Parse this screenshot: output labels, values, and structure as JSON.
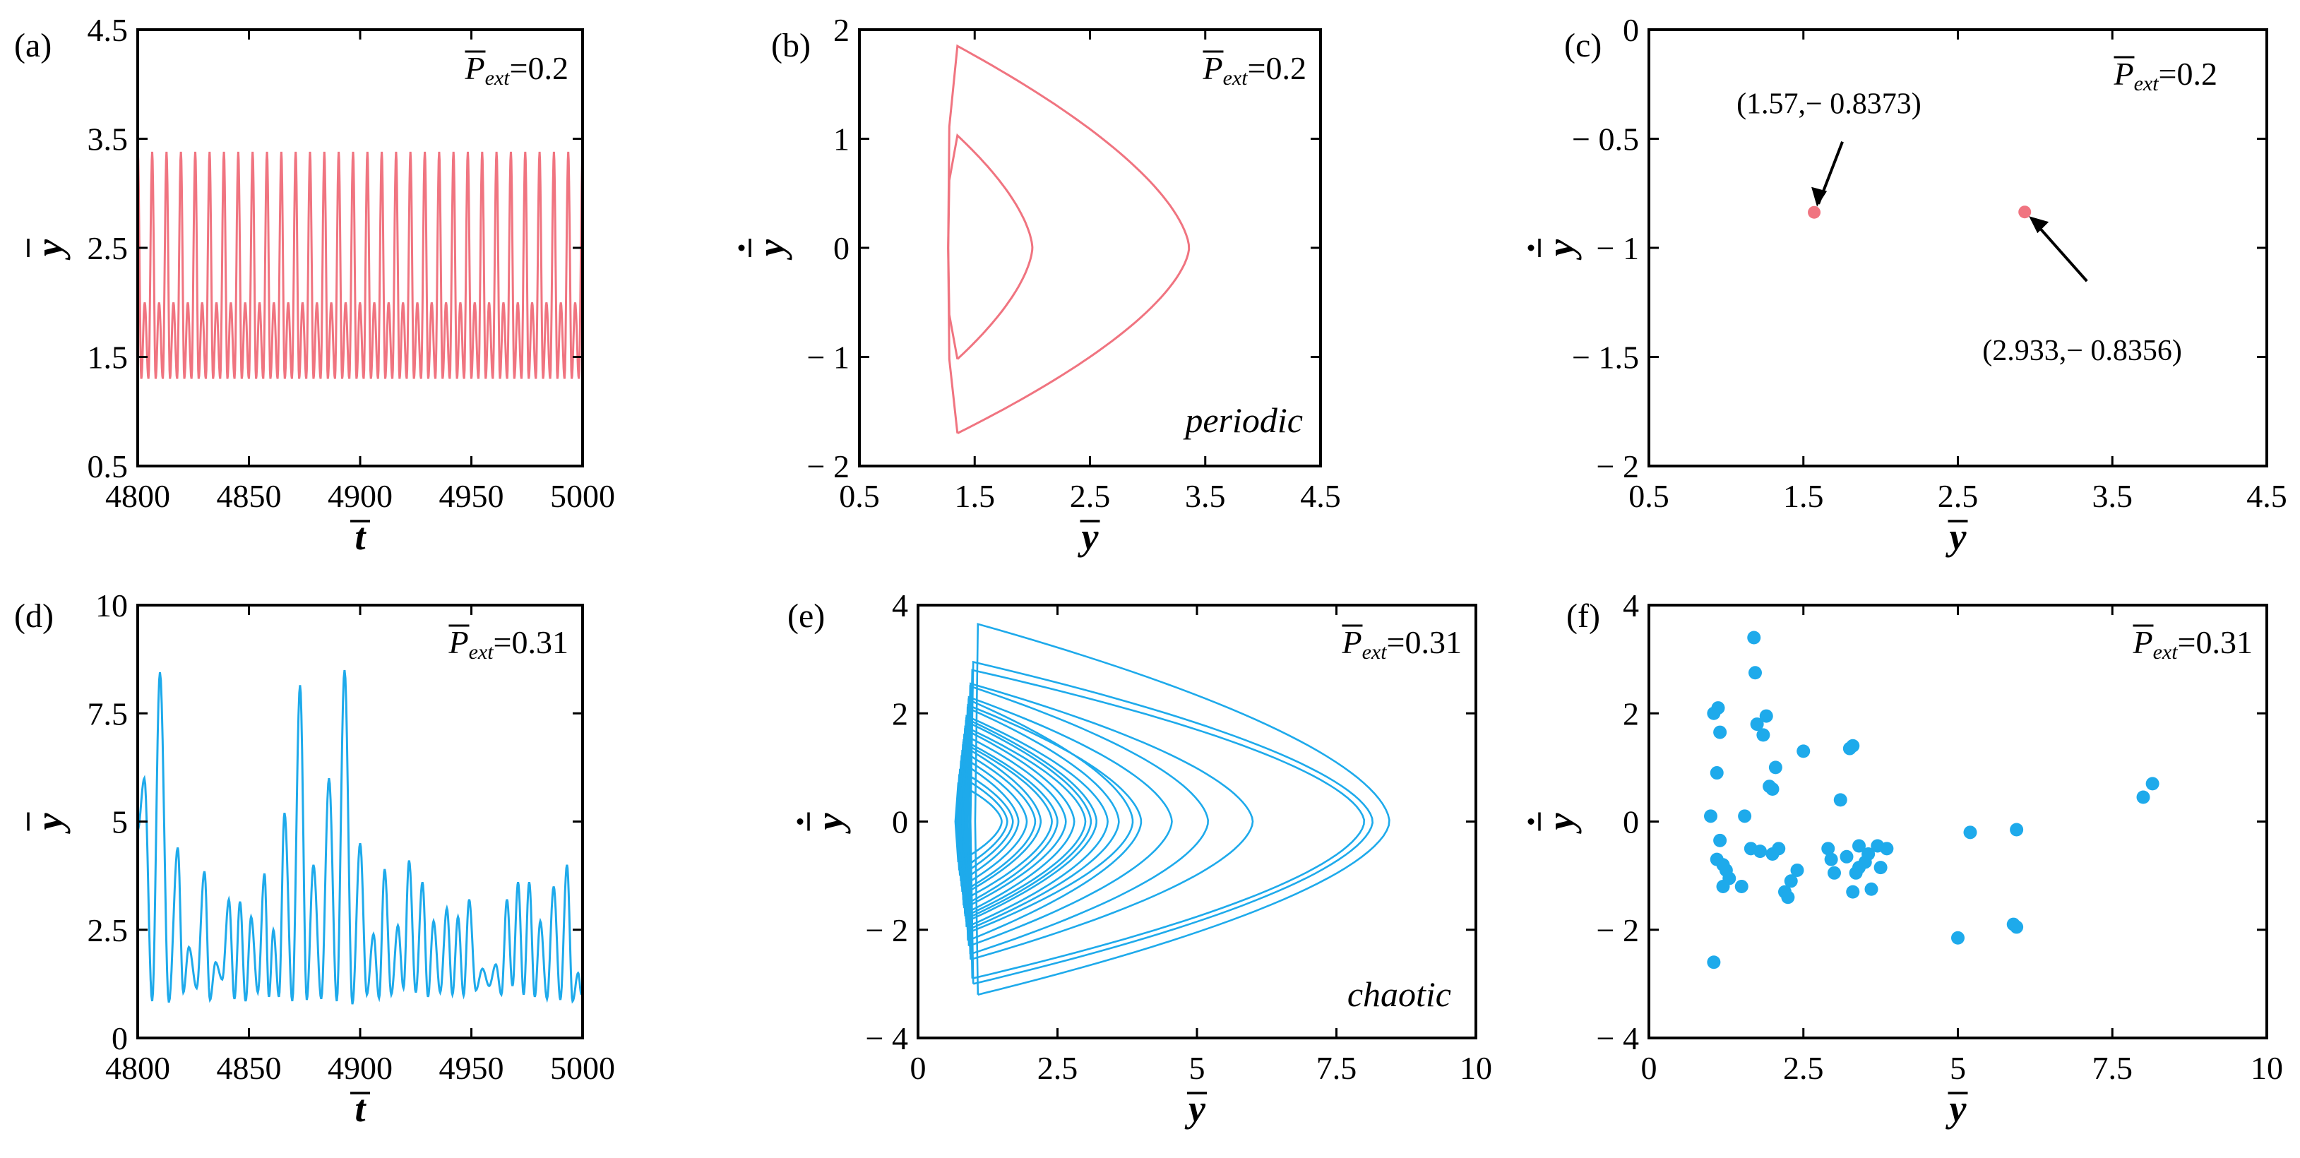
{
  "colors": {
    "red": "#f07480",
    "blue": "#1eaaeb",
    "axis": "#000000"
  },
  "panels": [
    {
      "key": "a",
      "label": "(a)",
      "param": "=0.2",
      "param_symbol": "P",
      "param_sub": "ext",
      "xlabel": "t",
      "ylabel": "y",
      "ylabel_dot": false,
      "color": "red",
      "regime": ""
    },
    {
      "key": "b",
      "label": "(b)",
      "param": "=0.2",
      "param_symbol": "P",
      "param_sub": "ext",
      "xlabel": "y",
      "ylabel": "y",
      "ylabel_dot": true,
      "color": "red",
      "regime": "periodic"
    },
    {
      "key": "c",
      "label": "(c)",
      "param": "=0.2",
      "param_symbol": "P",
      "param_sub": "ext",
      "xlabel": "y",
      "ylabel": "y",
      "ylabel_dot": true,
      "color": "red",
      "regime": ""
    },
    {
      "key": "d",
      "label": "(d)",
      "param": "=0.31",
      "param_symbol": "P",
      "param_sub": "ext",
      "xlabel": "t",
      "ylabel": "y",
      "ylabel_dot": false,
      "color": "blue",
      "regime": ""
    },
    {
      "key": "e",
      "label": "(e)",
      "param": "=0.31",
      "param_symbol": "P",
      "param_sub": "ext",
      "xlabel": "y",
      "ylabel": "y",
      "ylabel_dot": true,
      "color": "blue",
      "regime": "chaotic"
    },
    {
      "key": "f",
      "label": "(f)",
      "param": "=0.31",
      "param_symbol": "P",
      "param_sub": "ext",
      "xlabel": "y",
      "ylabel": "y",
      "ylabel_dot": true,
      "color": "blue",
      "regime": ""
    }
  ],
  "chart_data": [
    {
      "panel": "a",
      "type": "line",
      "xlim": [
        4800,
        5000
      ],
      "ylim": [
        0.5,
        4.5
      ],
      "xticks": [
        4800,
        4850,
        4900,
        4950,
        5000
      ],
      "xtick_labels": [
        "4800",
        "4850",
        "4900",
        "4950",
        "5000"
      ],
      "yticks": [
        0.5,
        1.5,
        2.5,
        3.5,
        4.5
      ],
      "ytick_labels": [
        "0.5",
        "1.5",
        "2.5",
        "3.5",
        "4.5"
      ],
      "series": [
        {
          "name": "periodic time series",
          "period": 6.45,
          "max_high": 3.38,
          "max_low": 2.0,
          "min": 1.3
        }
      ]
    },
    {
      "panel": "b",
      "type": "line",
      "xlim": [
        0.5,
        4.5
      ],
      "ylim": [
        -2,
        2
      ],
      "xticks": [
        0.5,
        1.5,
        2.5,
        3.5,
        4.5
      ],
      "xtick_labels": [
        "0.5",
        "1.5",
        "2.5",
        "3.5",
        "4.5"
      ],
      "yticks": [
        -2,
        -1,
        0,
        1,
        2
      ],
      "ytick_labels": [
        "− 2",
        "− 1",
        "0",
        "1",
        "2"
      ],
      "series": [
        {
          "name": "outer orbit",
          "turn_left": 1.3,
          "turn_right": 3.36,
          "vmax": 1.85,
          "vmin": -1.7
        },
        {
          "name": "inner orbit",
          "turn_left": 1.3,
          "turn_right": 2.0,
          "vmax": 1.03,
          "vmin": -1.02
        }
      ]
    },
    {
      "panel": "c",
      "type": "scatter",
      "xlim": [
        0.5,
        4.5
      ],
      "ylim": [
        -2,
        0
      ],
      "xticks": [
        0.5,
        1.5,
        2.5,
        3.5,
        4.5
      ],
      "xtick_labels": [
        "0.5",
        "1.5",
        "2.5",
        "3.5",
        "4.5"
      ],
      "yticks": [
        -2,
        -1.5,
        -1,
        -0.5,
        0
      ],
      "ytick_labels": [
        "− 2",
        "− 1.5",
        "− 1",
        "− 0.5",
        "0"
      ],
      "points": [
        [
          1.57,
          -0.8373
        ],
        [
          2.933,
          -0.8356
        ]
      ],
      "annotations": [
        "(1.57,− 0.8373)",
        "(2.933,− 0.8356)"
      ]
    },
    {
      "panel": "d",
      "type": "line",
      "xlim": [
        4800,
        5000
      ],
      "ylim": [
        0,
        10
      ],
      "xticks": [
        4800,
        4850,
        4900,
        4950,
        5000
      ],
      "xtick_labels": [
        "4800",
        "4850",
        "4900",
        "4950",
        "5000"
      ],
      "yticks": [
        0,
        2.5,
        5,
        7.5,
        10
      ],
      "ytick_labels": [
        "0",
        "2.5",
        "5",
        "7.5",
        "10"
      ],
      "series": [
        {
          "name": "chaotic time series",
          "maxima": [
            [
              4803,
              6.0
            ],
            [
              4810,
              8.45
            ],
            [
              4818,
              4.4
            ],
            [
              4823,
              2.1
            ],
            [
              4830,
              3.85
            ],
            [
              4835,
              1.75
            ],
            [
              4841,
              3.2
            ],
            [
              4846,
              3.15
            ],
            [
              4851,
              2.8
            ],
            [
              4857,
              3.8
            ],
            [
              4861,
              2.5
            ],
            [
              4866,
              5.2
            ],
            [
              4873,
              8.15
            ],
            [
              4879,
              4.0
            ],
            [
              4886,
              6.0
            ],
            [
              4893,
              8.5
            ],
            [
              4900,
              4.5
            ],
            [
              4906,
              2.4
            ],
            [
              4911,
              3.9
            ],
            [
              4917,
              2.6
            ],
            [
              4922,
              4.1
            ],
            [
              4928,
              3.6
            ],
            [
              4933,
              2.7
            ],
            [
              4939,
              3.0
            ],
            [
              4944,
              2.8
            ],
            [
              4949,
              3.2
            ],
            [
              4955,
              1.6
            ],
            [
              4961,
              1.7
            ],
            [
              4966,
              3.2
            ],
            [
              4971,
              3.6
            ],
            [
              4976,
              3.6
            ],
            [
              4981,
              2.7
            ],
            [
              4987,
              3.5
            ],
            [
              4993,
              4.0
            ],
            [
              4998,
              1.5
            ]
          ],
          "minima": [
            0.85,
            0.82,
            1.05,
            1.15,
            0.88,
            1.35,
            0.9,
            0.85,
            1.05,
            0.95,
            0.95,
            0.85,
            0.88,
            0.9,
            0.85,
            0.78,
            1.0,
            0.92,
            1.0,
            1.15,
            1.05,
            0.95,
            1.05,
            1.0,
            0.98,
            1.1,
            1.2,
            1.0,
            1.2,
            1.0,
            0.95,
            0.9,
            0.88,
            0.85,
            1.0,
            1.1
          ]
        }
      ]
    },
    {
      "panel": "e",
      "type": "line",
      "xlim": [
        0,
        10
      ],
      "ylim": [
        -4,
        4
      ],
      "xticks": [
        0,
        2.5,
        5,
        7.5,
        10
      ],
      "xtick_labels": [
        "0",
        "2.5",
        "5",
        "7.5",
        "10"
      ],
      "yticks": [
        -4,
        -2,
        0,
        2,
        4
      ],
      "ytick_labels": [
        "− 4",
        "− 2",
        "0",
        "2",
        "4"
      ],
      "series": [
        {
          "name": "chaotic orbit (loop extents)",
          "loops": [
            [
              8.45,
              3.65,
              -3.2
            ],
            [
              8.15,
              2.95,
              -3.0
            ],
            [
              8.0,
              2.8,
              -2.9
            ],
            [
              6.0,
              2.55,
              -2.55
            ],
            [
              5.2,
              2.5,
              -2.45
            ],
            [
              4.55,
              2.3,
              -2.3
            ],
            [
              4.0,
              2.15,
              -2.2
            ],
            [
              3.85,
              2.25,
              -2.05
            ],
            [
              3.6,
              2.1,
              -2.0
            ],
            [
              3.4,
              1.95,
              -1.95
            ],
            [
              3.2,
              1.9,
              -1.85
            ],
            [
              3.1,
              1.85,
              -1.8
            ],
            [
              3.0,
              1.75,
              -1.75
            ],
            [
              2.8,
              1.7,
              -1.7
            ],
            [
              2.65,
              1.6,
              -1.6
            ],
            [
              2.5,
              1.5,
              -1.55
            ],
            [
              2.4,
              1.45,
              -1.45
            ],
            [
              2.2,
              1.4,
              -1.35
            ],
            [
              2.1,
              1.3,
              -1.3
            ],
            [
              1.95,
              1.2,
              -1.2
            ],
            [
              1.8,
              1.1,
              -1.1
            ],
            [
              1.7,
              0.95,
              -1.0
            ],
            [
              1.6,
              0.85,
              -0.9
            ],
            [
              1.5,
              0.7,
              -0.75
            ]
          ]
        }
      ]
    },
    {
      "panel": "f",
      "type": "scatter",
      "xlim": [
        0,
        10
      ],
      "ylim": [
        -4,
        4
      ],
      "xticks": [
        0,
        2.5,
        5,
        7.5,
        10
      ],
      "xtick_labels": [
        "0",
        "2.5",
        "5",
        "7.5",
        "10"
      ],
      "yticks": [
        -4,
        -2,
        0,
        2,
        4
      ],
      "ytick_labels": [
        "− 4",
        "− 2",
        "0",
        "2",
        "4"
      ],
      "points": [
        [
          1.05,
          2.0
        ],
        [
          1.12,
          2.1
        ],
        [
          1.15,
          1.65
        ],
        [
          1.1,
          0.9
        ],
        [
          1.0,
          0.1
        ],
        [
          1.15,
          -0.35
        ],
        [
          1.1,
          -0.7
        ],
        [
          1.2,
          -0.8
        ],
        [
          1.25,
          -0.9
        ],
        [
          1.3,
          -1.05
        ],
        [
          1.2,
          -1.2
        ],
        [
          1.05,
          -2.6
        ],
        [
          1.55,
          0.1
        ],
        [
          1.5,
          -1.2
        ],
        [
          1.7,
          3.4
        ],
        [
          1.72,
          2.75
        ],
        [
          1.75,
          1.8
        ],
        [
          1.85,
          1.6
        ],
        [
          1.9,
          1.95
        ],
        [
          1.95,
          0.65
        ],
        [
          2.0,
          0.6
        ],
        [
          2.05,
          1.0
        ],
        [
          2.1,
          -0.5
        ],
        [
          2.0,
          -0.6
        ],
        [
          1.65,
          -0.5
        ],
        [
          1.8,
          -0.55
        ],
        [
          2.2,
          -1.3
        ],
        [
          2.25,
          -1.4
        ],
        [
          2.3,
          -1.1
        ],
        [
          2.5,
          1.3
        ],
        [
          2.4,
          -0.9
        ],
        [
          2.9,
          -0.5
        ],
        [
          2.95,
          -0.7
        ],
        [
          3.0,
          -0.95
        ],
        [
          3.1,
          0.4
        ],
        [
          3.2,
          -0.65
        ],
        [
          3.25,
          1.35
        ],
        [
          3.3,
          1.4
        ],
        [
          3.35,
          -0.95
        ],
        [
          3.4,
          -0.85
        ],
        [
          3.5,
          -0.75
        ],
        [
          3.55,
          -0.6
        ],
        [
          3.6,
          -1.25
        ],
        [
          3.3,
          -1.3
        ],
        [
          3.7,
          -0.45
        ],
        [
          3.75,
          -0.85
        ],
        [
          3.85,
          -0.5
        ],
        [
          3.4,
          -0.45
        ],
        [
          5.0,
          -2.15
        ],
        [
          5.2,
          -0.2
        ],
        [
          5.9,
          -1.9
        ],
        [
          5.95,
          -1.95
        ],
        [
          5.95,
          -0.15
        ],
        [
          8.0,
          0.45
        ],
        [
          8.15,
          0.7
        ]
      ]
    }
  ]
}
